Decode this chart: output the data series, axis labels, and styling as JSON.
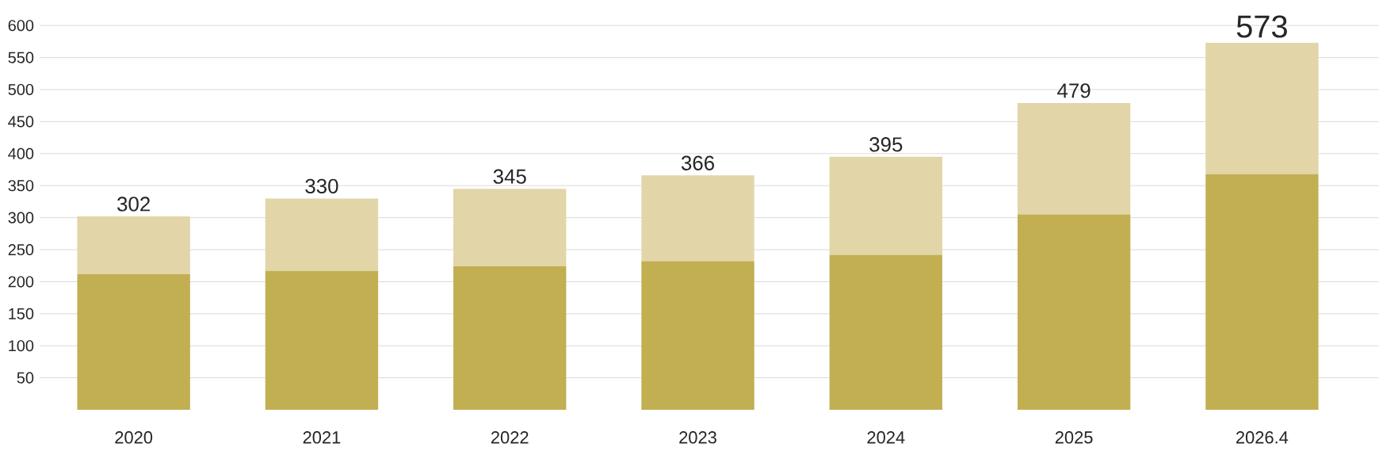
{
  "chart_data": {
    "type": "bar",
    "stacked": true,
    "categories": [
      "2020",
      "2021",
      "2022",
      "2023",
      "2024",
      "2025",
      "2026.4"
    ],
    "series": [
      {
        "color": "#c2af52",
        "values": [
          212,
          217,
          224,
          232,
          242,
          305,
          368
        ]
      },
      {
        "color": "#e2d5a8",
        "values": [
          90,
          113,
          121,
          134,
          153,
          174,
          205
        ]
      }
    ],
    "totals": [
      "302",
      "330",
      "345",
      "366",
      "395",
      "479",
      "573"
    ],
    "ylim": [
      0,
      600
    ],
    "yticks": [
      50,
      100,
      150,
      200,
      250,
      300,
      350,
      400,
      450,
      500,
      550,
      600
    ],
    "grid": "y"
  }
}
